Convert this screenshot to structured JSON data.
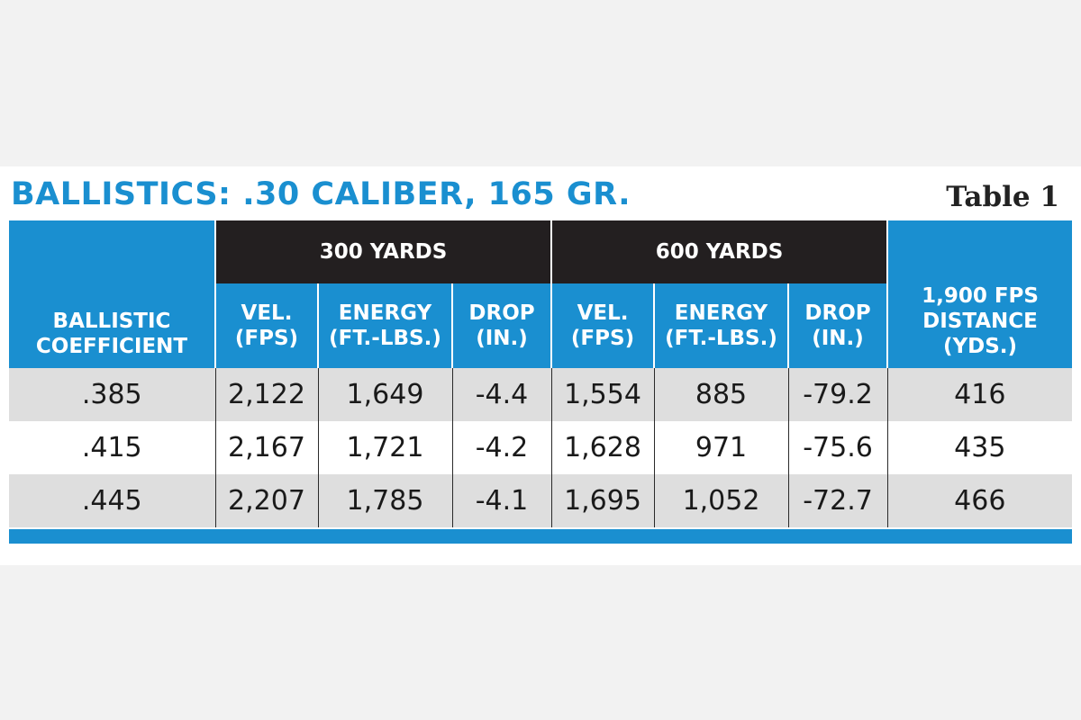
{
  "title": "BALLISTICS: .30 CALIBER, 165 GR.",
  "table_label": "Table 1",
  "groups": {
    "g300": "300 YARDS",
    "g600": "600 YARDS"
  },
  "headers": {
    "bc_line1": "BALLISTIC",
    "bc_line2": "COEFFICIENT",
    "vel_line1": "VEL.",
    "vel_line2": "(FPS)",
    "energy_line1": "ENERGY",
    "energy_line2": "(FT.-LBS.)",
    "drop_line1": "DROP",
    "drop_line2": "(IN.)",
    "dist_line1": "1,900 FPS",
    "dist_line2": "DISTANCE",
    "dist_line3": "(YDS.)"
  },
  "rows": [
    {
      "bc": ".385",
      "vel300": "2,122",
      "energy300": "1,649",
      "drop300": "-4.4",
      "vel600": "1,554",
      "energy600": "885",
      "drop600": "-79.2",
      "distance": "416"
    },
    {
      "bc": ".415",
      "vel300": "2,167",
      "energy300": "1,721",
      "drop300": "-4.2",
      "vel600": "1,628",
      "energy600": "971",
      "drop600": "-75.6",
      "distance": "435"
    },
    {
      "bc": ".445",
      "vel300": "2,207",
      "energy300": "1,785",
      "drop300": "-4.1",
      "vel600": "1,695",
      "energy600": "1,052",
      "drop600": "-72.7",
      "distance": "466"
    }
  ],
  "colors": {
    "accent_blue": "#1a8fd0",
    "header_black": "#231f20",
    "row_shade": "#dedede"
  }
}
